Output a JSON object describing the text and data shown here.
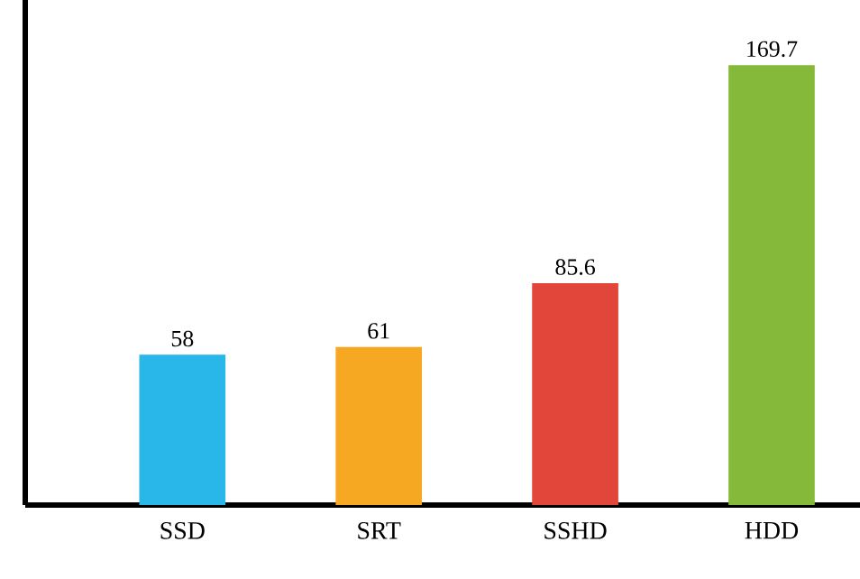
{
  "chart_data": {
    "type": "bar",
    "categories": [
      "SSD",
      "SRT",
      "SSHD",
      "HDD"
    ],
    "values": [
      58,
      61,
      85.6,
      169.7
    ],
    "colors": [
      "#29b6e9",
      "#f7a823",
      "#e2453a",
      "#84b93a"
    ],
    "data_labels": true
  }
}
